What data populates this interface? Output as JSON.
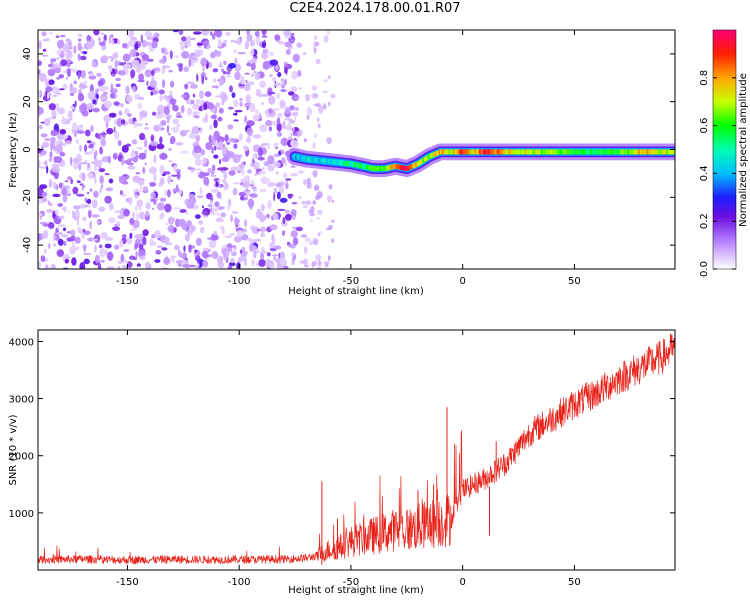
{
  "figure": {
    "title": "C2E4.2024.178.00.01.R07"
  },
  "chart_data": [
    {
      "type": "heatmap",
      "name": "spectrogram",
      "xlabel": "Height of straight line (km)",
      "ylabel": "Frequency (Hz)",
      "xlim": [
        -190,
        95
      ],
      "ylim": [
        -50,
        50
      ],
      "xticks": [
        -150,
        -100,
        -50,
        0,
        50
      ],
      "yticks": [
        -40,
        -20,
        0,
        20,
        40
      ],
      "grid": false,
      "colorbar": {
        "label": "Normalized spectral amplitude",
        "range": [
          0,
          1
        ],
        "ticks": [
          0.0,
          0.2,
          0.4,
          0.6,
          0.8
        ],
        "colors": [
          "#ffffff",
          "#d9b3ff",
          "#8a2be2",
          "#0000ff",
          "#00c8ff",
          "#00ff7f",
          "#7fff00",
          "#ffff00",
          "#ff8c00",
          "#ff0000",
          "#ff0080"
        ]
      },
      "noise_region": {
        "x_start": -190,
        "x_end": -73,
        "amplitude": 0.15
      },
      "sparse_region": {
        "x_start": -73,
        "x_end": -58,
        "amplitude": 0.05
      },
      "signal_trace": {
        "x": [
          -75,
          -70,
          -60,
          -50,
          -45,
          -40,
          -35,
          -30,
          -25,
          -20,
          -15,
          -10,
          -5,
          0,
          5,
          10,
          20,
          30,
          40,
          50,
          60,
          70,
          80,
          90,
          95
        ],
        "y": [
          -3,
          -4,
          -5,
          -6,
          -7,
          -8,
          -8,
          -7,
          -8,
          -6,
          -3,
          -1,
          -1,
          -1,
          -1,
          -1,
          -1,
          -1,
          -1,
          -1,
          -1,
          -1,
          -1,
          -1,
          -1
        ],
        "amplitude": [
          0.4,
          0.45,
          0.45,
          0.5,
          0.55,
          0.6,
          0.6,
          0.85,
          0.95,
          0.7,
          0.65,
          0.8,
          0.7,
          0.9,
          0.7,
          0.95,
          0.75,
          0.7,
          0.65,
          0.6,
          0.55,
          0.6,
          0.8,
          0.7,
          0.65
        ]
      }
    },
    {
      "type": "line",
      "name": "snr",
      "xlabel": "Height of straight line (km)",
      "ylabel": "SNR (10 * v/v)",
      "xlim": [
        -190,
        95
      ],
      "ylim": [
        0,
        4200
      ],
      "xticks": [
        -150,
        -100,
        -50,
        0,
        50
      ],
      "yticks": [
        1000,
        2000,
        3000,
        4000
      ],
      "grid": false,
      "color": "#e8231a",
      "series": [
        {
          "x": [
            -190,
            -170,
            -150,
            -130,
            -110,
            -90,
            -80,
            -75,
            -70,
            -65,
            -60,
            -55,
            -50,
            -45,
            -40,
            -35,
            -30,
            -25,
            -20,
            -15,
            -10,
            -5,
            0,
            5,
            10,
            15,
            20,
            25,
            30,
            40,
            50,
            60,
            70,
            80,
            90,
            95
          ],
          "y": [
            180,
            190,
            175,
            185,
            180,
            185,
            190,
            200,
            210,
            250,
            350,
            400,
            500,
            550,
            600,
            650,
            700,
            700,
            750,
            800,
            850,
            900,
            1400,
            1500,
            1600,
            1750,
            1900,
            2150,
            2400,
            2650,
            2900,
            3100,
            3350,
            3550,
            3750,
            3900
          ]
        }
      ],
      "spikes": [
        {
          "x": -63,
          "y": 1550
        },
        {
          "x": -56,
          "y": 900
        },
        {
          "x": -20,
          "y": 1400
        },
        {
          "x": -13,
          "y": 1500
        },
        {
          "x": -7,
          "y": 2850
        },
        {
          "x": 12,
          "y": 600
        },
        {
          "x": 15,
          "y": 2250
        }
      ]
    }
  ]
}
